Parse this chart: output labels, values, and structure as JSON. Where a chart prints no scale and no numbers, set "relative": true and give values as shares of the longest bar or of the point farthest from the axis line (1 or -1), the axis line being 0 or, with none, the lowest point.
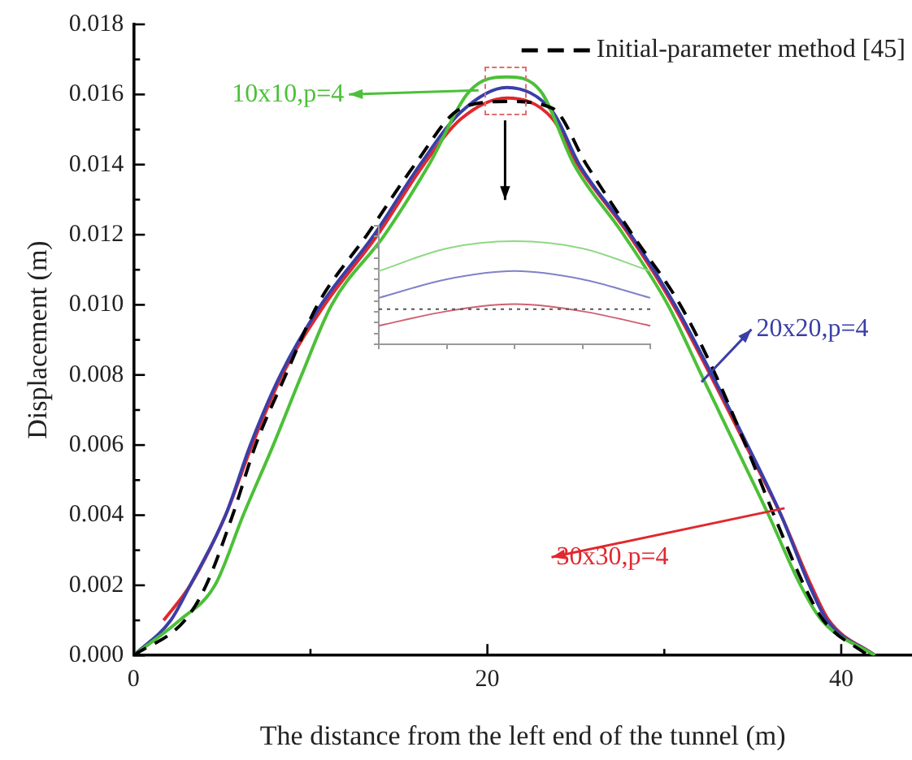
{
  "chart_data": [
    {
      "type": "line",
      "xlabel": "The distance from the left end of the tunnel (m)",
      "ylabel": "Displacement (m)",
      "xlim": [
        0,
        44
      ],
      "xticks": [
        0,
        20,
        40
      ],
      "ylim": [
        0,
        0.018
      ],
      "yticks": [
        {
          "value": 0,
          "label": "0.000"
        },
        0.002,
        0.004,
        0.006,
        0.008,
        {
          "value": 0.01,
          "label": "0.010"
        },
        0.012,
        0.014,
        0.016,
        0.018
      ],
      "legend": "top right",
      "marker": "none",
      "grid": false,
      "series": [
        {
          "name": "Initial-parameter method [45]",
          "color": "#000000",
          "line_style": "dashed",
          "x": [
            0,
            2.9,
            4.1,
            5.6,
            6.9,
            8.6,
            10.4,
            13.2,
            15.9,
            18.5,
            21.1,
            23.7,
            25.6,
            28.2,
            30.9,
            32.9,
            34.6,
            36.2,
            37.9,
            39,
            41.5
          ],
          "values": [
            0,
            0.001,
            0.002,
            0.004,
            0.006,
            0.008,
            0.01,
            0.012,
            0.014,
            0.0156,
            0.0158,
            0.0156,
            0.014,
            0.012,
            0.01,
            0.008,
            0.006,
            0.004,
            0.002,
            0.001,
            0
          ]
        },
        {
          "name": "10x10,p=4",
          "color": "#4cc038",
          "line_style": "solid",
          "x": [
            0,
            2.6,
            4.6,
            6.2,
            7.9,
            9.5,
            11.2,
            14.2,
            16.7,
            19,
            21.1,
            23,
            24.9,
            27.7,
            30.2,
            32.1,
            34,
            35.9,
            37.7,
            38.9,
            41.9
          ],
          "values": [
            0,
            0.001,
            0.002,
            0.004,
            0.006,
            0.008,
            0.01,
            0.012,
            0.014,
            0.0161,
            0.0165,
            0.0161,
            0.014,
            0.012,
            0.01,
            0.008,
            0.006,
            0.004,
            0.002,
            0.001,
            0
          ]
        },
        {
          "name": "20x20,p=4",
          "color": "#3a3fa8",
          "line_style": "solid",
          "x": [
            0,
            2.1,
            3.2,
            5.2,
            6.6,
            8.3,
            10.6,
            13.6,
            16.2,
            18.5,
            21.1,
            23.7,
            25.2,
            28.1,
            30.6,
            32.7,
            34.7,
            36.6,
            38.2,
            39.2,
            41.9
          ],
          "values": [
            0,
            0.001,
            0.002,
            0.004,
            0.006,
            0.008,
            0.01,
            0.012,
            0.014,
            0.0155,
            0.0162,
            0.0155,
            0.014,
            0.012,
            0.01,
            0.008,
            0.006,
            0.004,
            0.002,
            0.001,
            0
          ]
        },
        {
          "name": "30x30,p=4",
          "color": "#e0282e",
          "line_style": "solid",
          "x": [
            1.7,
            3.2,
            5.2,
            6.7,
            8.4,
            10.8,
            13.8,
            16.4,
            18.5,
            21.1,
            23.7,
            25.1,
            28,
            30.5,
            32.6,
            34.6,
            36.6,
            38.3,
            39.3,
            41.9
          ],
          "values": [
            0.001,
            0.002,
            0.004,
            0.006,
            0.008,
            0.01,
            0.012,
            0.014,
            0.0153,
            0.0159,
            0.0153,
            0.014,
            0.012,
            0.01,
            0.008,
            0.006,
            0.004,
            0.002,
            0.001,
            0
          ]
        }
      ]
    },
    {
      "type": "line",
      "relative": true,
      "tick_labels": false,
      "marker": "none",
      "categories": [
        null,
        null,
        null,
        null,
        null
      ],
      "series": [
        {
          "color": "#8fd884",
          "line_style": "solid",
          "values": [
            0.71,
            0.93,
            1,
            0.93,
            0.71
          ]
        },
        {
          "color": "#7f82c8",
          "line_style": "solid",
          "values": [
            0.45,
            0.63,
            0.71,
            0.63,
            0.45
          ]
        },
        {
          "color": "#555555",
          "line_style": "dotted",
          "values": [
            0.34,
            0.34,
            0.34,
            0.34,
            0.34
          ]
        },
        {
          "color": "#d06070",
          "line_style": "solid",
          "values": [
            0.18,
            0.32,
            0.39,
            0.32,
            0.18
          ]
        }
      ]
    }
  ]
}
